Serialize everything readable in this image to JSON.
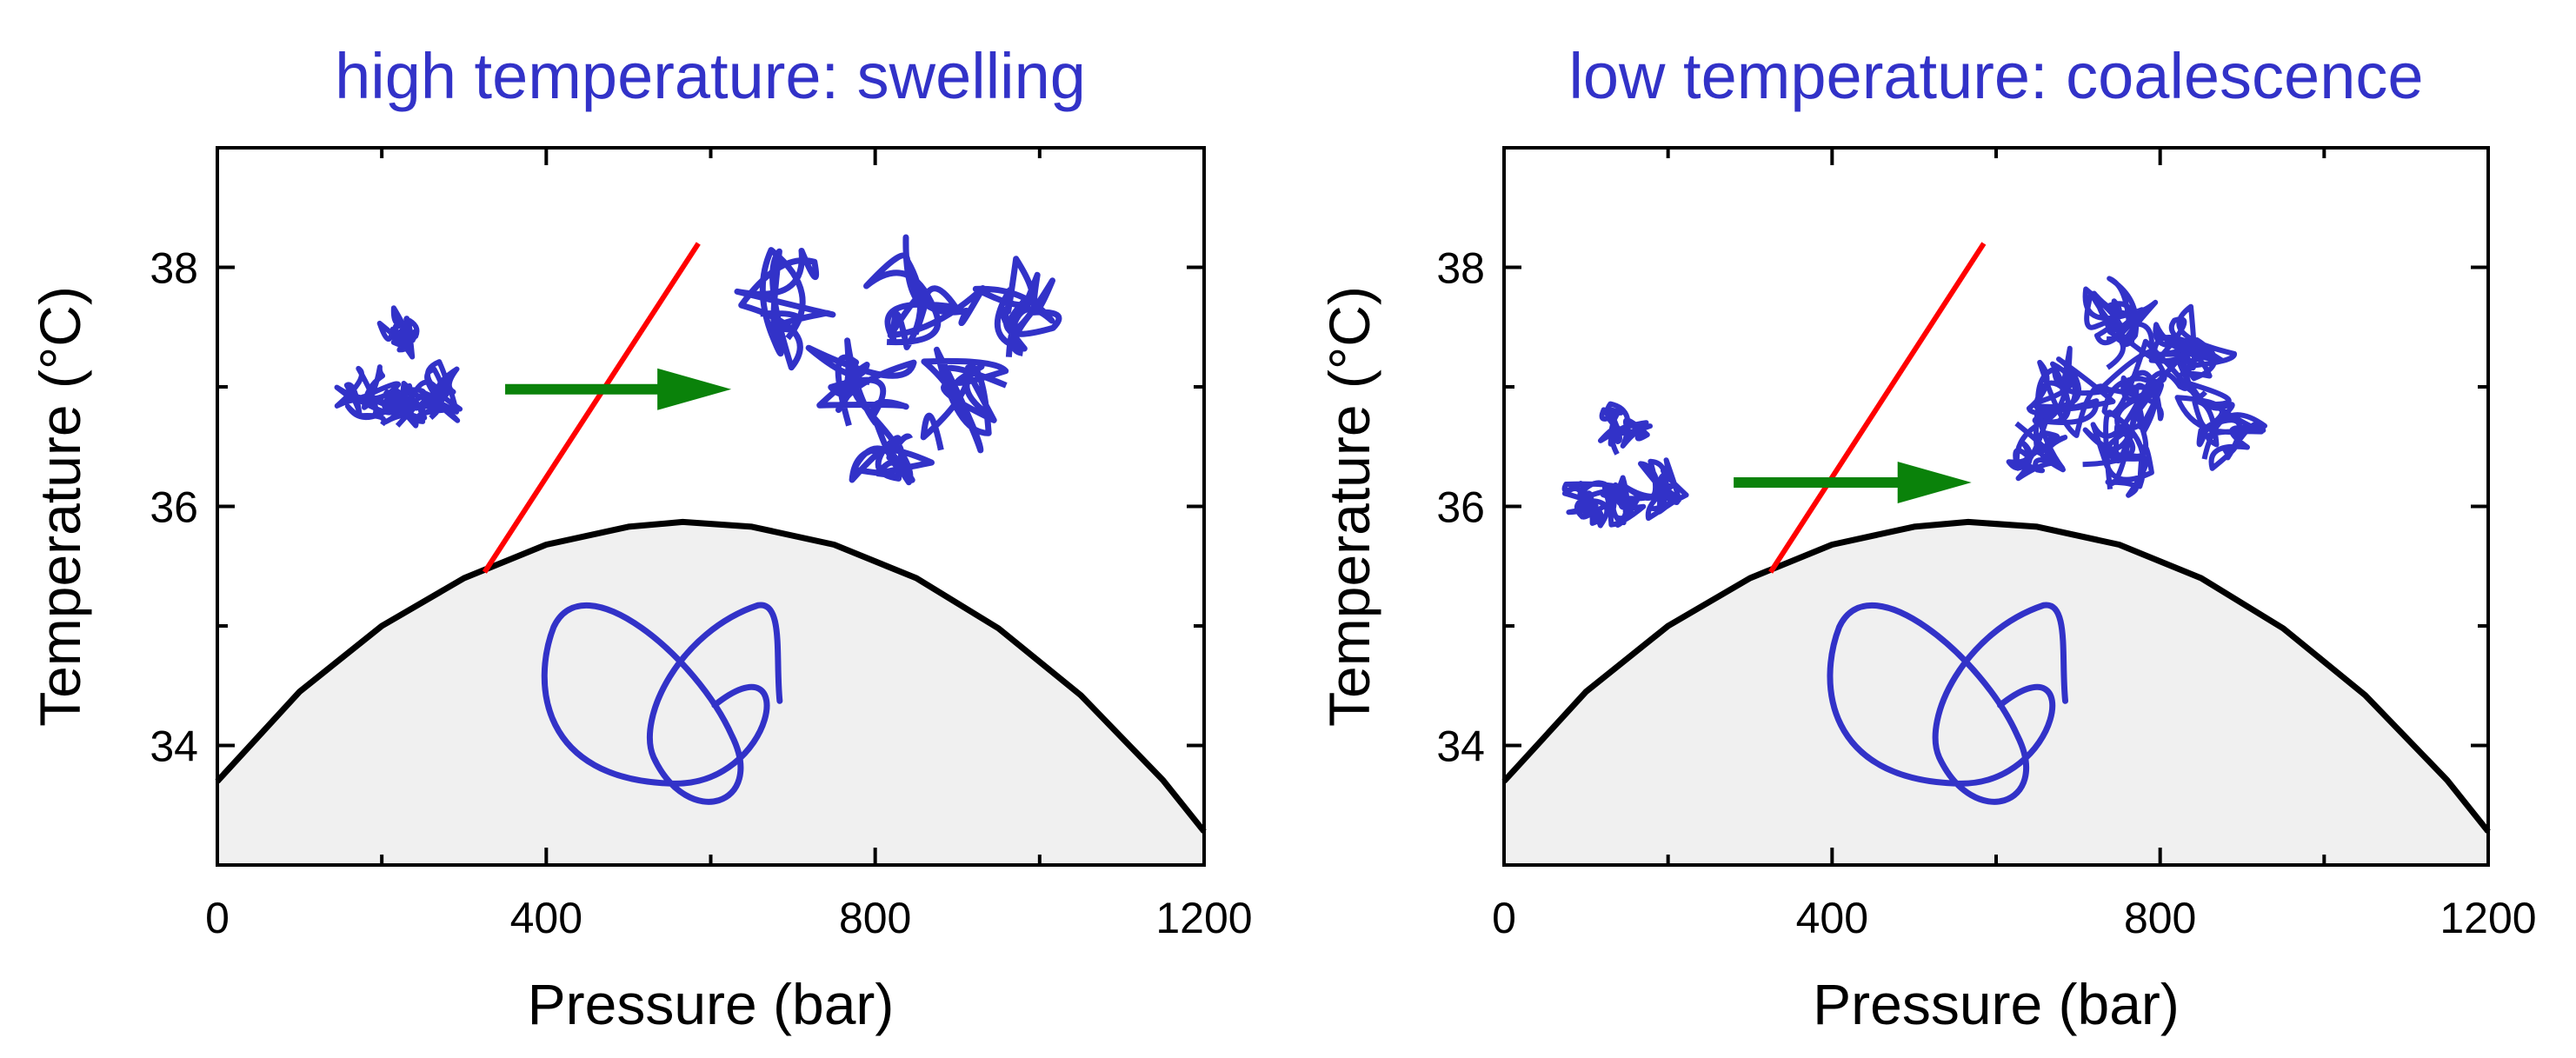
{
  "colors": {
    "title": "#3232c8",
    "polymer": "#3232c8",
    "boundary": "#000000",
    "fill_region": "#f0f0f0",
    "red_line": "#ff0000",
    "arrow": "#0a820a"
  },
  "chart_data": [
    {
      "type": "line",
      "title": "high temperature: swelling",
      "xlabel": "Pressure (bar)",
      "ylabel": "Temperature (°C)",
      "xlim": [
        0,
        1200
      ],
      "ylim": [
        33,
        39
      ],
      "xticks": [
        0,
        400,
        800,
        1200
      ],
      "yticks": [
        34,
        36,
        38
      ],
      "grid": false,
      "series": [
        {
          "kind": "phase-boundary",
          "x": [
            0,
            100,
            200,
            300,
            400,
            500,
            566,
            650,
            750,
            850,
            950,
            1050,
            1150,
            1200
          ],
          "y": [
            33.7,
            34.45,
            35.0,
            35.4,
            35.68,
            35.83,
            35.87,
            35.83,
            35.68,
            35.4,
            34.98,
            34.42,
            33.71,
            33.28
          ]
        },
        {
          "kind": "red-line",
          "x": [
            325,
            585
          ],
          "y": [
            35.45,
            38.2
          ]
        },
        {
          "kind": "arrow",
          "x": [
            350,
            625
          ],
          "y": [
            36.98,
            36.98
          ]
        }
      ],
      "illustrations": [
        {
          "kind": "small-globule",
          "x": 225,
          "y": 37.0
        },
        {
          "kind": "swollen-aggregate",
          "x": 815,
          "y": 37.2
        },
        {
          "kind": "unfolded-coil",
          "x": 520,
          "y": 34.3
        }
      ]
    },
    {
      "type": "line",
      "title": "low temperature: coalescence",
      "xlabel": "Pressure (bar)",
      "ylabel": "Temperature (°C)",
      "xlim": [
        0,
        1200
      ],
      "ylim": [
        33,
        39
      ],
      "xticks": [
        0,
        400,
        800,
        1200
      ],
      "yticks": [
        34,
        36,
        38
      ],
      "grid": false,
      "series": [
        {
          "kind": "phase-boundary",
          "x": [
            0,
            100,
            200,
            300,
            400,
            500,
            566,
            650,
            750,
            850,
            950,
            1050,
            1150,
            1200
          ],
          "y": [
            33.7,
            34.45,
            35.0,
            35.4,
            35.68,
            35.83,
            35.87,
            35.83,
            35.68,
            35.4,
            34.98,
            34.42,
            33.71,
            33.28
          ]
        },
        {
          "kind": "red-line",
          "x": [
            325,
            585
          ],
          "y": [
            35.45,
            38.2
          ]
        },
        {
          "kind": "arrow",
          "x": [
            280,
            570
          ],
          "y": [
            36.2,
            36.2
          ]
        }
      ],
      "illustrations": [
        {
          "kind": "small-globule",
          "x": 145,
          "y": 36.2
        },
        {
          "kind": "coalesced-aggregate",
          "x": 770,
          "y": 37.0
        },
        {
          "kind": "unfolded-coil",
          "x": 520,
          "y": 34.3
        }
      ]
    }
  ]
}
